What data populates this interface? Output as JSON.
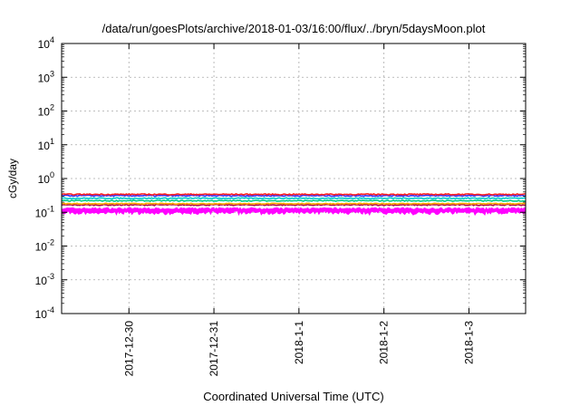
{
  "chart_data": {
    "type": "area",
    "title": "/data/run/goesPlots/archive/2018-01-03/16:00/flux/../bryn/5daysMoon.plot",
    "xlabel": "Coordinated Universal Time (UTC)",
    "ylabel": "cGy/day",
    "yscale": "log",
    "ylim": [
      0.0001,
      10000
    ],
    "y_ticks": [
      {
        "base": "10",
        "exp": "-4",
        "value": 0.0001
      },
      {
        "base": "10",
        "exp": "-3",
        "value": 0.001
      },
      {
        "base": "10",
        "exp": "-2",
        "value": 0.01
      },
      {
        "base": "10",
        "exp": "-1",
        "value": 0.1
      },
      {
        "base": "10",
        "exp": "0",
        "value": 1
      },
      {
        "base": "10",
        "exp": "1",
        "value": 10
      },
      {
        "base": "10",
        "exp": "2",
        "value": 100
      },
      {
        "base": "10",
        "exp": "3",
        "value": 1000
      },
      {
        "base": "10",
        "exp": "4",
        "value": 10000
      }
    ],
    "xlim": [
      "2017-12-29 05:00",
      "2018-01-03 16:00"
    ],
    "x_ticks": [
      "2017-12-30",
      "2017-12-31",
      "2018-1-1",
      "2018-1-2",
      "2018-1-3"
    ],
    "x_tick_dates": [
      "2017-12-30",
      "2017-12-31",
      "2018-01-01",
      "2018-01-02",
      "2018-01-03"
    ],
    "grid": true,
    "series": [
      {
        "color": "#ff00ff",
        "style": "filled-band",
        "level": 0.13,
        "spread": 0.12
      },
      {
        "color": "#b01050",
        "level": 0.165,
        "spread": 0.08
      },
      {
        "color": "#ffaa00",
        "level": 0.18,
        "spread": 0.06
      },
      {
        "color": "#00cc88",
        "level": 0.22,
        "spread": 0.07
      },
      {
        "color": "#00cccc",
        "level": 0.26,
        "spread": 0.07
      },
      {
        "color": "#3333ff",
        "level": 0.31,
        "spread": 0.08
      },
      {
        "color": "#ff2020",
        "level": 0.34,
        "spread": 0.07
      }
    ]
  }
}
